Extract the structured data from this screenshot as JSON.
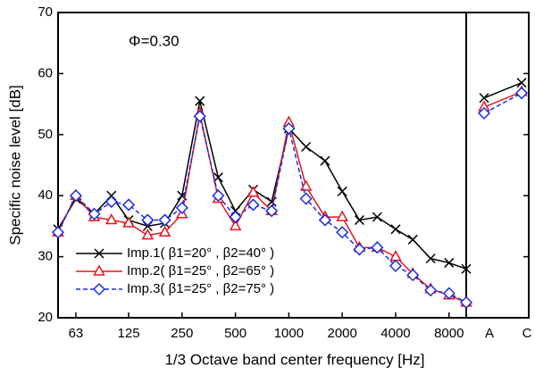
{
  "chart_data": [
    {
      "type": "line",
      "xscale": "log",
      "x": [
        50,
        63,
        80,
        100,
        125,
        160,
        200,
        250,
        315,
        400,
        500,
        630,
        800,
        1000,
        1250,
        1600,
        2000,
        2500,
        3150,
        4000,
        5000,
        6300,
        8000,
        10000
      ],
      "xlim": [
        50,
        10000
      ],
      "xticks": [
        63,
        125,
        250,
        500,
        1000,
        2000,
        4000,
        8000
      ],
      "ylim": [
        20,
        70
      ],
      "yticks": [
        20,
        30,
        40,
        50,
        60,
        70
      ],
      "xlabel": "1/3 Octave band center frequency [Hz]",
      "ylabel": "Specific noise level [dB]",
      "annotation": "Φ=0.30",
      "legend": "lower left",
      "series": [
        {
          "name": "Imp.1( β1=20° , β2=40° )",
          "color": "#000000",
          "marker": "x",
          "dash": false,
          "values": [
            34.5,
            39.5,
            37,
            40,
            36,
            35,
            35.5,
            40,
            55.5,
            43,
            37.5,
            41,
            39,
            51,
            48,
            45.7,
            40.7,
            36,
            36.5,
            34.5,
            32.8,
            29.7,
            29,
            28
          ]
        },
        {
          "name": "Imp.2( β1=25° , β2=65° )",
          "color": "#e8141e",
          "marker": "triangle",
          "dash": false,
          "values": [
            34,
            40,
            36.5,
            36,
            35.5,
            33.5,
            34,
            37,
            53.5,
            39.5,
            35,
            40.5,
            37.5,
            52,
            41.5,
            36.5,
            36.5,
            31.5,
            31.5,
            30,
            27.2,
            24.7,
            23.7,
            22.5
          ]
        },
        {
          "name": "Imp.3( β1=25° , β2=75° )",
          "color": "#1a2ee0",
          "marker": "diamond",
          "dash": true,
          "values": [
            34,
            40,
            37,
            39,
            38.5,
            36,
            36,
            38,
            53,
            40,
            36.5,
            38.5,
            37.5,
            51,
            39.5,
            36,
            34,
            31.2,
            31.5,
            28.5,
            27,
            24.5,
            24,
            22.5
          ]
        }
      ]
    },
    {
      "type": "line",
      "categories": [
        "A",
        "C"
      ],
      "ylim": [
        20,
        70
      ],
      "yticks": [
        20,
        30,
        40,
        50,
        60,
        70
      ],
      "series": [
        {
          "color": "#000000",
          "marker": "x",
          "dash": false,
          "values": [
            56,
            58.5
          ]
        },
        {
          "color": "#e8141e",
          "marker": "triangle",
          "dash": false,
          "values": [
            54.5,
            57
          ]
        },
        {
          "color": "#1a2ee0",
          "marker": "diamond",
          "dash": true,
          "values": [
            53.5,
            56.8
          ]
        }
      ]
    }
  ]
}
